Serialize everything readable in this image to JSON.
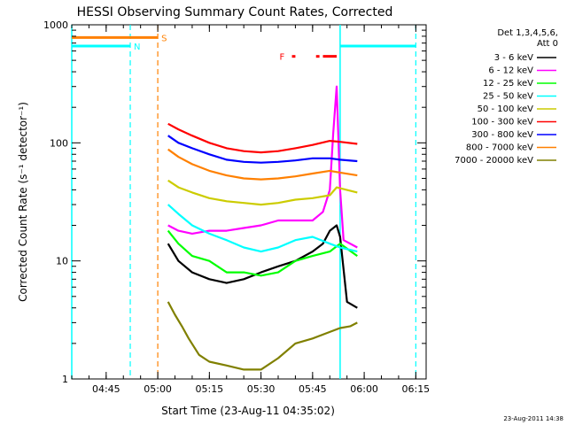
{
  "chart_data": {
    "type": "line",
    "title": "HESSI Observing Summary Count Rates, Corrected",
    "xlabel": "Start Time (23-Aug-11 04:35:02)",
    "ylabel": "Corrected Count Rate (s⁻¹ detector⁻¹)",
    "y_scale": "log",
    "ylim": [
      1,
      1000
    ],
    "xlim": [
      "04:35",
      "06:18"
    ],
    "x_ticks": [
      "04:45",
      "05:00",
      "05:15",
      "05:30",
      "05:45",
      "06:00",
      "06:15"
    ],
    "y_ticks": [
      "1",
      "10",
      "100",
      "1000"
    ],
    "legend_title": "Det 1,3,4,5,6,",
    "legend_subtitle": "Att 0",
    "legend_position": "right",
    "footer": "23-Aug-2011 14:38",
    "series": [
      {
        "name": "3 - 6 keV",
        "color": "#000000",
        "x": [
          "05:03",
          "05:06",
          "05:10",
          "05:15",
          "05:20",
          "05:25",
          "05:30",
          "05:35",
          "05:40",
          "05:45",
          "05:48",
          "05:50",
          "05:52",
          "05:53",
          "05:55",
          "05:58"
        ],
        "y": [
          14,
          10,
          8,
          7,
          6.5,
          7,
          8,
          9,
          10,
          12,
          14,
          18,
          20,
          16,
          4.5,
          4
        ]
      },
      {
        "name": "6 - 12 keV",
        "color": "#ff00ff",
        "x": [
          "05:03",
          "05:06",
          "05:10",
          "05:15",
          "05:20",
          "05:25",
          "05:30",
          "05:35",
          "05:40",
          "05:45",
          "05:48",
          "05:50",
          "05:51",
          "05:52",
          "05:53",
          "05:54",
          "05:58"
        ],
        "y": [
          20,
          18,
          17,
          18,
          18,
          19,
          20,
          22,
          22,
          22,
          26,
          40,
          120,
          300,
          40,
          15,
          13
        ]
      },
      {
        "name": "12 - 25 keV",
        "color": "#00ff00",
        "x": [
          "05:03",
          "05:06",
          "05:10",
          "05:15",
          "05:20",
          "05:25",
          "05:30",
          "05:35",
          "05:40",
          "05:45",
          "05:50",
          "05:53",
          "05:58"
        ],
        "y": [
          18,
          14,
          11,
          10,
          8,
          8,
          7.5,
          8,
          10,
          11,
          12,
          14,
          11
        ]
      },
      {
        "name": "25 - 50 keV",
        "color": "#00ffff",
        "x": [
          "05:03",
          "05:06",
          "05:10",
          "05:15",
          "05:20",
          "05:25",
          "05:30",
          "05:35",
          "05:40",
          "05:45",
          "05:50",
          "05:53",
          "05:58"
        ],
        "y": [
          30,
          25,
          20,
          17,
          15,
          13,
          12,
          13,
          15,
          16,
          14,
          13,
          12
        ]
      },
      {
        "name": "50 - 100 keV",
        "color": "#cccc00",
        "x": [
          "05:03",
          "05:06",
          "05:10",
          "05:15",
          "05:20",
          "05:25",
          "05:30",
          "05:35",
          "05:40",
          "05:45",
          "05:50",
          "05:52",
          "05:58"
        ],
        "y": [
          48,
          42,
          38,
          34,
          32,
          31,
          30,
          31,
          33,
          34,
          36,
          42,
          38
        ]
      },
      {
        "name": "100 - 300 keV",
        "color": "#ff0000",
        "x": [
          "05:03",
          "05:06",
          "05:10",
          "05:15",
          "05:20",
          "05:25",
          "05:30",
          "05:35",
          "05:40",
          "05:45",
          "05:50",
          "05:53",
          "05:58"
        ],
        "y": [
          145,
          130,
          115,
          100,
          90,
          85,
          83,
          85,
          90,
          96,
          104,
          102,
          98
        ]
      },
      {
        "name": "300 - 800 keV",
        "color": "#0000ff",
        "x": [
          "05:03",
          "05:06",
          "05:10",
          "05:15",
          "05:20",
          "05:25",
          "05:30",
          "05:35",
          "05:40",
          "05:45",
          "05:50",
          "05:53",
          "05:58"
        ],
        "y": [
          115,
          100,
          90,
          80,
          72,
          69,
          68,
          69,
          71,
          74,
          74,
          72,
          70
        ]
      },
      {
        "name": "800 - 7000 keV",
        "color": "#ff8000",
        "x": [
          "05:03",
          "05:06",
          "05:10",
          "05:15",
          "05:20",
          "05:25",
          "05:30",
          "05:35",
          "05:40",
          "05:45",
          "05:50",
          "05:53",
          "05:58"
        ],
        "y": [
          88,
          76,
          66,
          58,
          53,
          50,
          49,
          50,
          52,
          55,
          58,
          56,
          53
        ]
      },
      {
        "name": "7000 - 20000 keV",
        "color": "#808000",
        "x": [
          "05:03",
          "05:05",
          "05:07",
          "05:09",
          "05:12",
          "05:15",
          "05:20",
          "05:25",
          "05:30",
          "05:35",
          "05:40",
          "05:45",
          "05:50",
          "05:53",
          "05:56",
          "05:58"
        ],
        "y": [
          4.5,
          3.5,
          2.8,
          2.2,
          1.6,
          1.4,
          1.3,
          1.2,
          1.2,
          1.5,
          2.0,
          2.2,
          2.5,
          2.7,
          2.8,
          3.0
        ]
      }
    ],
    "annotations": [
      {
        "label": "N",
        "type": "night",
        "color": "#00ffff",
        "bars": [
          [
            "04:35",
            "04:52"
          ],
          [
            "05:53",
            "06:15"
          ]
        ],
        "bar_level": 660,
        "dashed_lines": [
          "04:52",
          "06:15"
        ],
        "solid_lines": [
          "04:35",
          "05:53"
        ]
      },
      {
        "label": "S",
        "type": "saa",
        "color": "#ff8000",
        "bars": [
          [
            "04:35",
            "05:00"
          ]
        ],
        "bar_level": 780,
        "dashed_lines": [
          "05:00"
        ]
      },
      {
        "label": "F",
        "type": "flare",
        "color": "#ff0000",
        "bars": [
          [
            "05:39",
            "05:40"
          ],
          [
            "05:46",
            "05:47"
          ],
          [
            "05:48",
            "05:52"
          ]
        ],
        "bar_level": 540
      }
    ]
  }
}
